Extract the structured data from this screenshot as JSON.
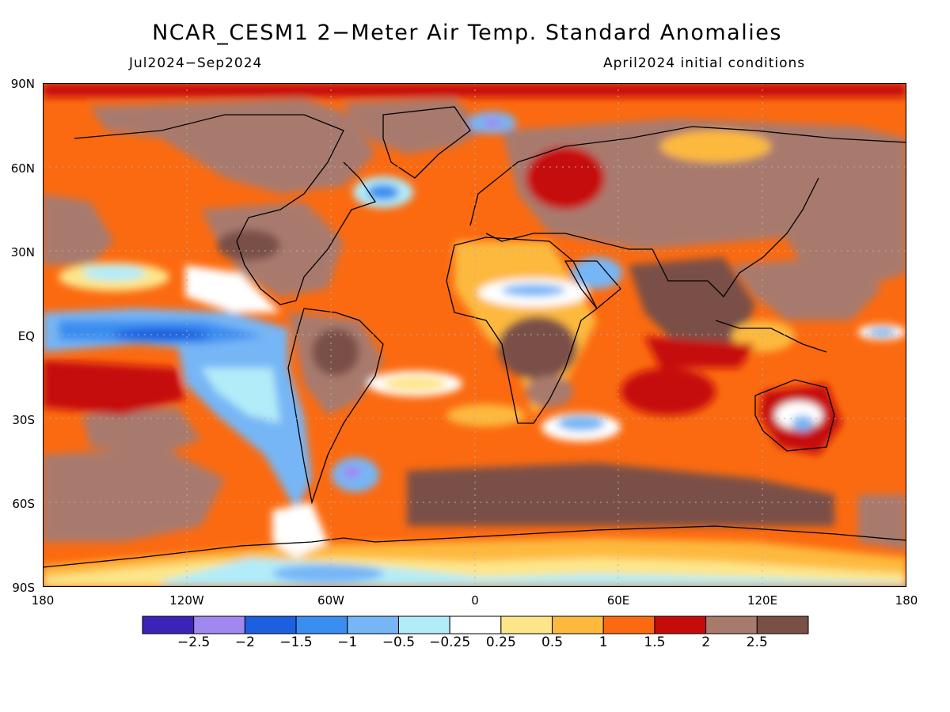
{
  "title": "NCAR_CESM1 2−Meter Air Temp. Standard Anomalies",
  "period": "Jul2024−Sep2024",
  "init": "April2024 initial conditions",
  "lat_labels": [
    "90N",
    "60N",
    "30N",
    "EQ",
    "30S",
    "60S",
    "90S"
  ],
  "lon_labels": [
    "180",
    "120W",
    "60W",
    "0",
    "60E",
    "120E",
    "180"
  ],
  "colorbar": {
    "labels": [
      "−2.5",
      "−2",
      "−1.5",
      "−1",
      "−0.5",
      "−0.25",
      "0.25",
      "0.5",
      "1",
      "1.5",
      "2",
      "2.5"
    ],
    "colors": [
      "#3b23b8",
      "#a088f0",
      "#1c5fe0",
      "#3a8ef0",
      "#76b6f6",
      "#b2ecf8",
      "#ffffff",
      "#fde68a",
      "#fdb93c",
      "#fb6a10",
      "#c60b0b",
      "#a87a6e",
      "#7a4f46"
    ]
  },
  "map": {
    "background": "#fb6a10",
    "regions": [
      {
        "label": "Arctic Canada / Greenland",
        "color": "#a87a6e"
      },
      {
        "label": "Greenland sea cool spot",
        "color": "#a088f0"
      },
      {
        "label": "Labrador Sea cool spot",
        "color": "#3a8ef0"
      },
      {
        "label": "Eastern tropical Pacific (La Nina)",
        "color": "#3a8ef0"
      },
      {
        "label": "Southeast Pacific cool tongue",
        "color": "#76b6f6"
      },
      {
        "label": "South Atlantic cool area",
        "color": "#a088f0"
      },
      {
        "label": "Arabian Peninsula cool area",
        "color": "#76b6f6"
      },
      {
        "label": "Antarctica cool belt",
        "color": "#b2ecf8"
      },
      {
        "label": "Southern Ocean warm belt",
        "color": "#7a4f46"
      },
      {
        "label": "Indian Ocean warm",
        "color": "#7a4f46"
      },
      {
        "label": "Eurasia warm",
        "color": "#a87a6e"
      }
    ]
  }
}
